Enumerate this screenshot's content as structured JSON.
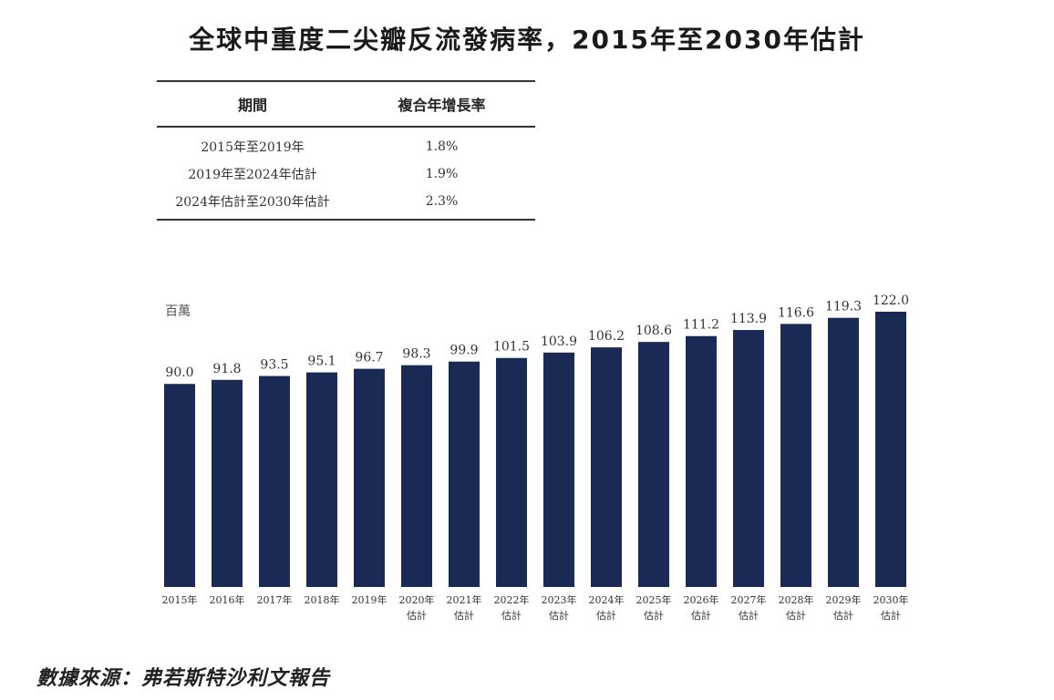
{
  "title": "全球中重度二尖瓣反流發病率，2015年至2030年估計",
  "cagr_table": {
    "headers": [
      "期間",
      "複合年增長率"
    ],
    "rows": [
      {
        "period": "2015年至2019年",
        "rate": "1.8%"
      },
      {
        "period": "2019年至2024年估計",
        "rate": "1.9%"
      },
      {
        "period": "2024年估計至2030年估計",
        "rate": "2.3%"
      }
    ]
  },
  "chart_data": {
    "type": "bar",
    "unit_label": "百萬",
    "categories": [
      [
        "2015年"
      ],
      [
        "2016年"
      ],
      [
        "2017年"
      ],
      [
        "2018年"
      ],
      [
        "2019年"
      ],
      [
        "2020年",
        "估計"
      ],
      [
        "2021年",
        "估計"
      ],
      [
        "2022年",
        "估計"
      ],
      [
        "2023年",
        "估計"
      ],
      [
        "2024年",
        "估計"
      ],
      [
        "2025年",
        "估計"
      ],
      [
        "2026年",
        "估計"
      ],
      [
        "2027年",
        "估計"
      ],
      [
        "2028年",
        "估計"
      ],
      [
        "2029年",
        "估計"
      ],
      [
        "2030年",
        "估計"
      ]
    ],
    "values": [
      90.0,
      91.8,
      93.5,
      95.1,
      96.7,
      98.3,
      99.9,
      101.5,
      103.9,
      106.2,
      108.6,
      111.2,
      113.9,
      116.6,
      119.3,
      122.0
    ],
    "labels": [
      "90.0",
      "91.8",
      "93.5",
      "95.1",
      "96.7",
      "98.3",
      "99.9",
      "101.5",
      "103.9",
      "106.2",
      "108.6",
      "111.2",
      "113.9",
      "116.6",
      "119.3",
      "122.0"
    ],
    "bar_color": "#1b2a55",
    "ylim": [
      0,
      122.0
    ],
    "grid": false,
    "xlabel": "",
    "ylabel": ""
  },
  "source": "數據來源：弗若斯特沙利文報告"
}
